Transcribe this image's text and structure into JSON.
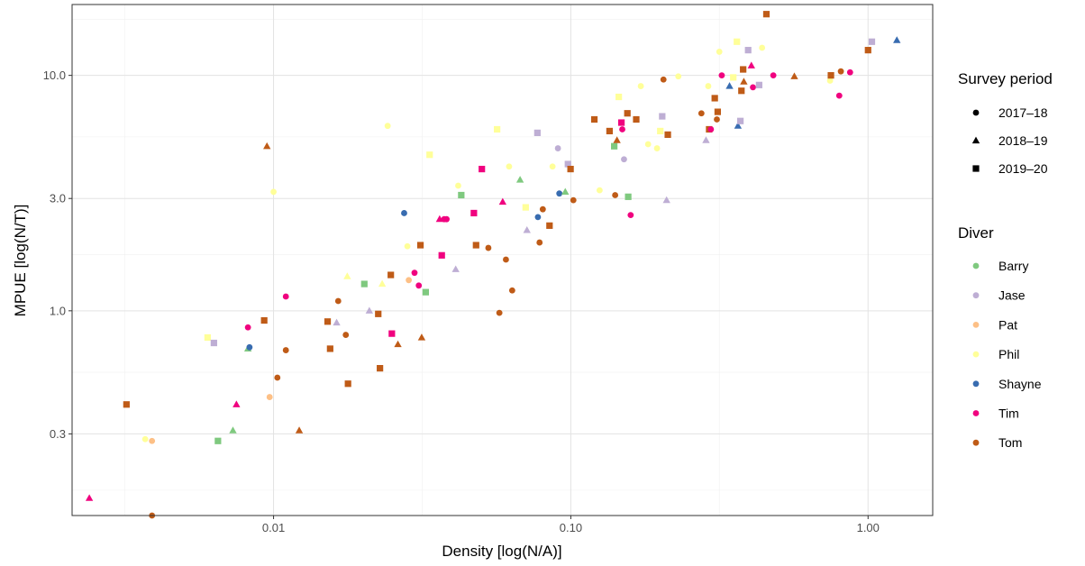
{
  "chart_data": {
    "type": "scatter",
    "xlabel": "Density [log(N/A)]",
    "ylabel": "MPUE [log(N/T)]",
    "x_scale": "log10",
    "y_scale": "log10",
    "xlim": [
      0.0021,
      1.65
    ],
    "ylim": [
      0.135,
      20
    ],
    "x_ticks": [
      {
        "value": 0.01,
        "label": "0.01"
      },
      {
        "value": 0.1,
        "label": "0.10"
      },
      {
        "value": 1.0,
        "label": "1.00"
      }
    ],
    "y_ticks": [
      {
        "value": 0.3,
        "label": "0.3"
      },
      {
        "value": 1.0,
        "label": "1.0"
      },
      {
        "value": 3.0,
        "label": "3.0"
      },
      {
        "value": 10.0,
        "label": "10.0"
      }
    ],
    "grid": true,
    "legend_position": "right",
    "legends": {
      "shape": {
        "title": "Survey period",
        "entries": [
          {
            "label": "2017–18",
            "shape": "circle"
          },
          {
            "label": "2018–19",
            "shape": "triangle"
          },
          {
            "label": "2019–20",
            "shape": "square"
          }
        ]
      },
      "color": {
        "title": "Diver",
        "entries": [
          {
            "label": "Barry",
            "color": "#7fc97f"
          },
          {
            "label": "Jase",
            "color": "#beaed4"
          },
          {
            "label": "Pat",
            "color": "#fdc086"
          },
          {
            "label": "Phil",
            "color": "#ffff99"
          },
          {
            "label": "Shayne",
            "color": "#386cb0"
          },
          {
            "label": "Tim",
            "color": "#f0027f"
          },
          {
            "label": "Tom",
            "color": "#bf5b17"
          }
        ]
      }
    },
    "points": [
      [
        0.0024,
        0.16,
        "Tim",
        "2018-19"
      ],
      [
        0.0039,
        0.135,
        "Tom",
        "2017-18"
      ],
      [
        0.0032,
        0.4,
        "Tom",
        "2019-20"
      ],
      [
        0.0037,
        0.285,
        "Phil",
        "2017-18"
      ],
      [
        0.0039,
        0.28,
        "Pat",
        "2017-18"
      ],
      [
        0.0065,
        0.28,
        "Barry",
        "2019-20"
      ],
      [
        0.0073,
        0.31,
        "Barry",
        "2018-19"
      ],
      [
        0.0075,
        0.4,
        "Tim",
        "2018-19"
      ],
      [
        0.0082,
        0.69,
        "Barry",
        "2018-19"
      ],
      [
        0.0083,
        0.7,
        "Shayne",
        "2017-18"
      ],
      [
        0.006,
        0.77,
        "Phil",
        "2019-20"
      ],
      [
        0.0063,
        0.73,
        "Jase",
        "2019-20"
      ],
      [
        0.0082,
        0.85,
        "Tim",
        "2017-18"
      ],
      [
        0.0093,
        0.91,
        "Tom",
        "2019-20"
      ],
      [
        0.0095,
        5.0,
        "Tom",
        "2018-19"
      ],
      [
        0.0097,
        0.43,
        "Pat",
        "2017-18"
      ],
      [
        0.01,
        3.2,
        "Phil",
        "2017-18"
      ],
      [
        0.0103,
        0.52,
        "Tom",
        "2017-18"
      ],
      [
        0.011,
        0.68,
        "Tom",
        "2017-18"
      ],
      [
        0.011,
        1.15,
        "Tim",
        "2017-18"
      ],
      [
        0.0122,
        0.31,
        "Tom",
        "2018-19"
      ],
      [
        0.0152,
        0.9,
        "Tom",
        "2019-20"
      ],
      [
        0.0155,
        0.69,
        "Tom",
        "2019-20"
      ],
      [
        0.0163,
        0.89,
        "Jase",
        "2018-19"
      ],
      [
        0.0165,
        1.1,
        "Tom",
        "2017-18"
      ],
      [
        0.0175,
        0.79,
        "Tom",
        "2017-18"
      ],
      [
        0.0178,
        0.49,
        "Tom",
        "2019-20"
      ],
      [
        0.0177,
        1.4,
        "Phil",
        "2018-19"
      ],
      [
        0.0202,
        1.3,
        "Barry",
        "2019-20"
      ],
      [
        0.021,
        1.0,
        "Jase",
        "2018-19"
      ],
      [
        0.0225,
        0.97,
        "Tom",
        "2019-20"
      ],
      [
        0.0228,
        0.57,
        "Tom",
        "2019-20"
      ],
      [
        0.0232,
        1.3,
        "Phil",
        "2018-19"
      ],
      [
        0.0242,
        6.1,
        "Phil",
        "2017-18"
      ],
      [
        0.0248,
        1.42,
        "Tom",
        "2019-20"
      ],
      [
        0.025,
        0.8,
        "Tim",
        "2019-20"
      ],
      [
        0.0262,
        0.72,
        "Tom",
        "2018-19"
      ],
      [
        0.0275,
        2.6,
        "Shayne",
        "2017-18"
      ],
      [
        0.0282,
        1.88,
        "Phil",
        "2017-18"
      ],
      [
        0.0285,
        1.35,
        "Pat",
        "2017-18"
      ],
      [
        0.0298,
        1.45,
        "Tim",
        "2017-18"
      ],
      [
        0.0308,
        1.28,
        "Tim",
        "2017-18"
      ],
      [
        0.0312,
        1.9,
        "Tom",
        "2019-20"
      ],
      [
        0.0315,
        0.77,
        "Tom",
        "2018-19"
      ],
      [
        0.0325,
        1.2,
        "Barry",
        "2019-20"
      ],
      [
        0.0335,
        4.6,
        "Phil",
        "2019-20"
      ],
      [
        0.0362,
        2.45,
        "Tim",
        "2018-19"
      ],
      [
        0.0368,
        1.72,
        "Tim",
        "2019-20"
      ],
      [
        0.0375,
        2.45,
        "Tim",
        "2017-18"
      ],
      [
        0.0382,
        2.45,
        "Tim",
        "2017-18"
      ],
      [
        0.041,
        1.5,
        "Jase",
        "2018-19"
      ],
      [
        0.0418,
        3.4,
        "Phil",
        "2017-18"
      ],
      [
        0.0428,
        3.1,
        "Barry",
        "2019-20"
      ],
      [
        0.0472,
        2.6,
        "Tim",
        "2019-20"
      ],
      [
        0.048,
        1.9,
        "Tom",
        "2019-20"
      ],
      [
        0.0502,
        4.0,
        "Tim",
        "2019-20"
      ],
      [
        0.0528,
        1.85,
        "Tom",
        "2017-18"
      ],
      [
        0.0565,
        5.9,
        "Phil",
        "2019-20"
      ],
      [
        0.0575,
        0.98,
        "Tom",
        "2017-18"
      ],
      [
        0.059,
        2.9,
        "Tim",
        "2018-19"
      ],
      [
        0.0605,
        1.65,
        "Tom",
        "2017-18"
      ],
      [
        0.062,
        4.1,
        "Phil",
        "2017-18"
      ],
      [
        0.0635,
        1.22,
        "Tom",
        "2017-18"
      ],
      [
        0.0675,
        3.6,
        "Barry",
        "2018-19"
      ],
      [
        0.0705,
        2.75,
        "Phil",
        "2019-20"
      ],
      [
        0.0712,
        2.2,
        "Jase",
        "2018-19"
      ],
      [
        0.0772,
        5.7,
        "Jase",
        "2019-20"
      ],
      [
        0.0775,
        2.5,
        "Shayne",
        "2017-18"
      ],
      [
        0.0785,
        1.95,
        "Tom",
        "2017-18"
      ],
      [
        0.0805,
        2.7,
        "Tom",
        "2017-18"
      ],
      [
        0.0848,
        2.3,
        "Tom",
        "2019-20"
      ],
      [
        0.0868,
        4.1,
        "Phil",
        "2017-18"
      ],
      [
        0.0915,
        3.15,
        "Shayne",
        "2017-18"
      ],
      [
        0.0905,
        4.9,
        "Jase",
        "2017-18"
      ],
      [
        0.0958,
        3.2,
        "Barry",
        "2018-19"
      ],
      [
        0.0978,
        4.2,
        "Jase",
        "2019-20"
      ],
      [
        0.0998,
        4.0,
        "Tom",
        "2019-20"
      ],
      [
        0.102,
        2.95,
        "Tom",
        "2017-18"
      ],
      [
        0.12,
        6.5,
        "Tom",
        "2019-20"
      ],
      [
        0.125,
        3.25,
        "Phil",
        "2017-18"
      ],
      [
        0.135,
        5.8,
        "Tom",
        "2019-20"
      ],
      [
        0.14,
        5.0,
        "Barry",
        "2019-20"
      ],
      [
        0.141,
        3.1,
        "Tom",
        "2017-18"
      ],
      [
        0.143,
        5.3,
        "Tom",
        "2018-19"
      ],
      [
        0.145,
        8.1,
        "Phil",
        "2019-20"
      ],
      [
        0.148,
        6.3,
        "Tim",
        "2019-20"
      ],
      [
        0.149,
        5.9,
        "Tim",
        "2017-18"
      ],
      [
        0.151,
        4.4,
        "Jase",
        "2017-18"
      ],
      [
        0.155,
        6.9,
        "Tom",
        "2019-20"
      ],
      [
        0.156,
        3.05,
        "Barry",
        "2019-20"
      ],
      [
        0.159,
        2.55,
        "Tim",
        "2017-18"
      ],
      [
        0.166,
        6.5,
        "Tom",
        "2019-20"
      ],
      [
        0.172,
        9.0,
        "Phil",
        "2017-18"
      ],
      [
        0.182,
        5.1,
        "Phil",
        "2017-18"
      ],
      [
        0.195,
        4.9,
        "Phil",
        "2017-18"
      ],
      [
        0.2,
        5.8,
        "Phil",
        "2019-20"
      ],
      [
        0.203,
        6.7,
        "Jase",
        "2019-20"
      ],
      [
        0.205,
        9.6,
        "Tom",
        "2017-18"
      ],
      [
        0.21,
        2.95,
        "Jase",
        "2018-19"
      ],
      [
        0.212,
        5.6,
        "Tom",
        "2019-20"
      ],
      [
        0.23,
        9.9,
        "Phil",
        "2017-18"
      ],
      [
        0.275,
        6.9,
        "Tom",
        "2017-18"
      ],
      [
        0.285,
        5.3,
        "Jase",
        "2018-19"
      ],
      [
        0.29,
        9.0,
        "Phil",
        "2017-18"
      ],
      [
        0.292,
        5.9,
        "Tom",
        "2019-20"
      ],
      [
        0.296,
        5.9,
        "Tim",
        "2017-18"
      ],
      [
        0.305,
        8.0,
        "Tom",
        "2019-20"
      ],
      [
        0.31,
        6.5,
        "Tom",
        "2017-18"
      ],
      [
        0.312,
        7.0,
        "Tom",
        "2019-20"
      ],
      [
        0.316,
        12.6,
        "Phil",
        "2017-18"
      ],
      [
        0.322,
        10.0,
        "Tim",
        "2017-18"
      ],
      [
        0.342,
        9.0,
        "Shayne",
        "2018-19"
      ],
      [
        0.352,
        9.8,
        "Phil",
        "2019-20"
      ],
      [
        0.362,
        13.9,
        "Phil",
        "2019-20"
      ],
      [
        0.365,
        6.1,
        "Shayne",
        "2018-19"
      ],
      [
        0.372,
        6.4,
        "Jase",
        "2019-20"
      ],
      [
        0.375,
        8.6,
        "Tom",
        "2019-20"
      ],
      [
        0.38,
        10.6,
        "Tom",
        "2019-20"
      ],
      [
        0.382,
        9.4,
        "Tom",
        "2018-19"
      ],
      [
        0.395,
        12.8,
        "Jase",
        "2019-20"
      ],
      [
        0.405,
        11.0,
        "Tim",
        "2018-19"
      ],
      [
        0.41,
        8.9,
        "Tim",
        "2017-18"
      ],
      [
        0.43,
        9.1,
        "Jase",
        "2019-20"
      ],
      [
        0.44,
        13.1,
        "Phil",
        "2017-18"
      ],
      [
        0.455,
        18.2,
        "Tom",
        "2019-20"
      ],
      [
        0.48,
        10.0,
        "Tim",
        "2017-18"
      ],
      [
        0.565,
        9.9,
        "Tom",
        "2018-19"
      ],
      [
        0.745,
        9.5,
        "Phil",
        "2017-18"
      ],
      [
        0.75,
        10.0,
        "Tom",
        "2019-20"
      ],
      [
        0.8,
        8.2,
        "Tim",
        "2017-18"
      ],
      [
        0.81,
        10.4,
        "Tom",
        "2017-18"
      ],
      [
        0.87,
        10.3,
        "Tim",
        "2017-18"
      ],
      [
        1.0,
        12.8,
        "Tom",
        "2019-20"
      ],
      [
        1.03,
        13.9,
        "Jase",
        "2019-20"
      ],
      [
        1.25,
        14.1,
        "Shayne",
        "2018-19"
      ]
    ]
  }
}
